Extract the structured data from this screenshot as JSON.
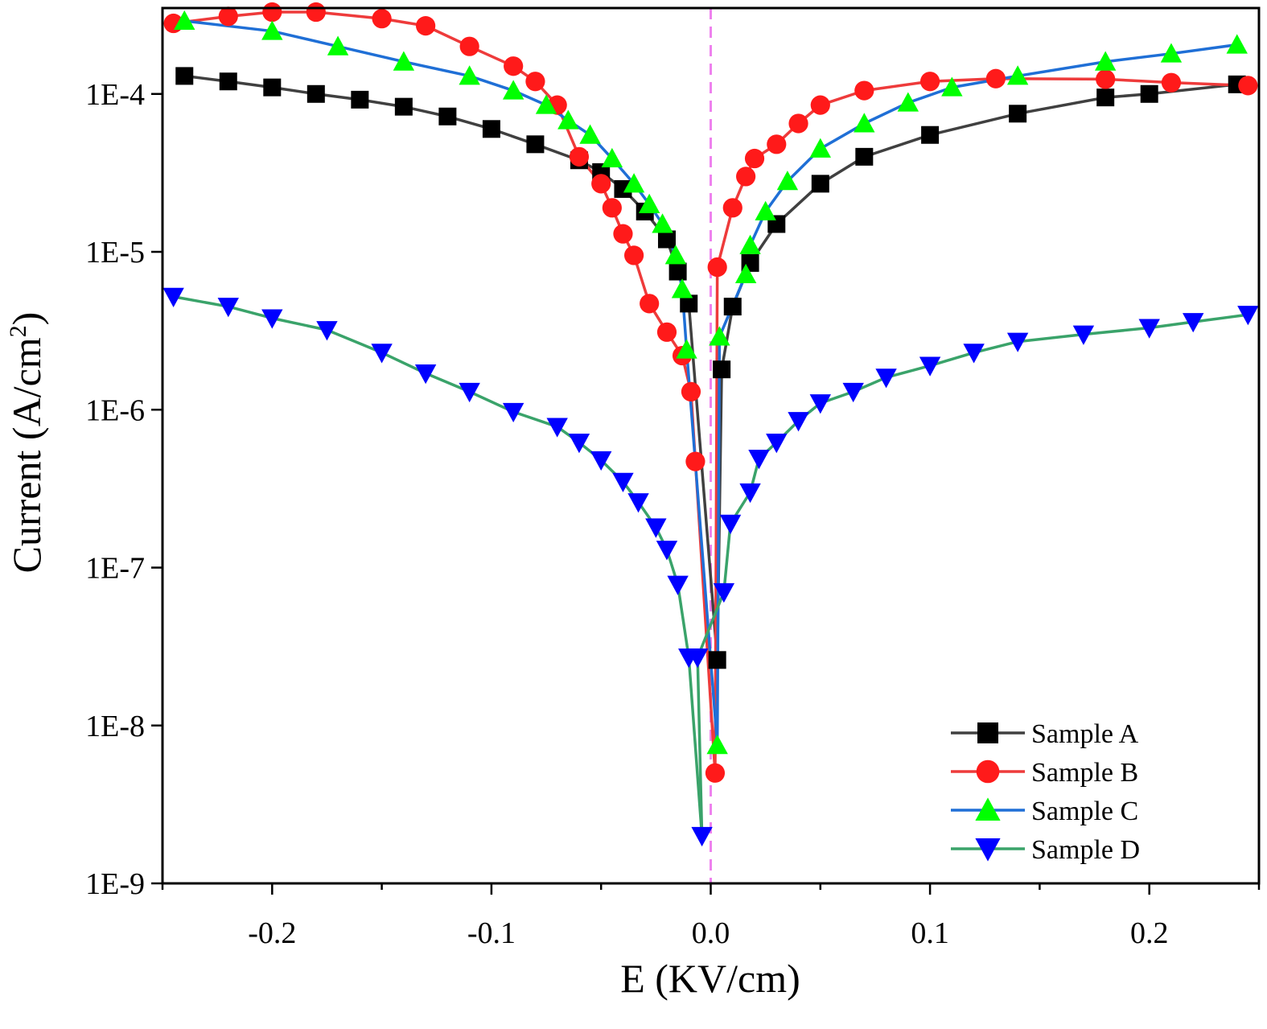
{
  "chart_data": {
    "type": "line",
    "xlabel": "E (KV/cm)",
    "ylabel_main": "Current (A/cm",
    "ylabel_sup": "2",
    "ylabel_close": ")",
    "xlim": [
      -0.25,
      0.25
    ],
    "ylim": [
      1e-09,
      0.00035
    ],
    "yscale": "log",
    "grid": false,
    "legend_position": "bottom-right",
    "reference_line": {
      "x": 0.0,
      "color": "#ee82ee",
      "style": "dashed"
    },
    "x_ticks": [
      -0.2,
      -0.1,
      0.0,
      0.1,
      0.2
    ],
    "x_tick_labels": [
      "-0.2",
      "-0.1",
      "0.0",
      "0.1",
      "0.2"
    ],
    "y_ticks": [
      1e-09,
      1e-08,
      1e-07,
      1e-06,
      1e-05,
      0.0001
    ],
    "y_tick_labels": [
      "1E-9",
      "1E-8",
      "1E-7",
      "1E-6",
      "1E-5",
      "1E-4"
    ],
    "series": [
      {
        "name": "Sample A",
        "marker": "square",
        "line_color": "#404040",
        "marker_color": "#000000",
        "x": [
          -0.24,
          -0.22,
          -0.2,
          -0.18,
          -0.16,
          -0.14,
          -0.12,
          -0.1,
          -0.08,
          -0.06,
          -0.05,
          -0.04,
          -0.03,
          -0.02,
          -0.015,
          -0.01,
          0.003,
          0.005,
          0.01,
          0.018,
          0.03,
          0.05,
          0.07,
          0.1,
          0.14,
          0.18,
          0.2,
          0.24
        ],
        "y": [
          0.00013,
          0.00012,
          0.00011,
          0.0001,
          9.2e-05,
          8.3e-05,
          7.2e-05,
          6e-05,
          4.8e-05,
          3.8e-05,
          3.2e-05,
          2.5e-05,
          1.8e-05,
          1.2e-05,
          7.5e-06,
          4.7e-06,
          2.6e-08,
          1.8e-06,
          4.5e-06,
          8.5e-06,
          1.5e-05,
          2.7e-05,
          4e-05,
          5.5e-05,
          7.5e-05,
          9.5e-05,
          0.0001,
          0.000115
        ]
      },
      {
        "name": "Sample B",
        "marker": "circle",
        "line_color": "#ee3b3b",
        "marker_color": "#ff1a1a",
        "x": [
          -0.245,
          -0.22,
          -0.2,
          -0.18,
          -0.15,
          -0.13,
          -0.11,
          -0.09,
          -0.08,
          -0.07,
          -0.06,
          -0.05,
          -0.045,
          -0.04,
          -0.035,
          -0.028,
          -0.02,
          -0.013,
          -0.009,
          -0.007,
          0.002,
          0.003,
          0.01,
          0.016,
          0.02,
          0.03,
          0.04,
          0.05,
          0.07,
          0.1,
          0.13,
          0.18,
          0.21,
          0.245
        ],
        "y": [
          0.00028,
          0.00031,
          0.00033,
          0.00033,
          0.0003,
          0.00027,
          0.0002,
          0.00015,
          0.00012,
          8.5e-05,
          4e-05,
          2.7e-05,
          1.9e-05,
          1.3e-05,
          9.5e-06,
          4.7e-06,
          3.1e-06,
          2.2e-06,
          1.3e-06,
          4.7e-07,
          5e-09,
          8e-06,
          1.9e-05,
          3e-05,
          3.9e-05,
          4.8e-05,
          6.5e-05,
          8.5e-05,
          0.000105,
          0.00012,
          0.000125,
          0.000124,
          0.000118,
          0.000113
        ]
      },
      {
        "name": "Sample C",
        "marker": "triangle-up",
        "line_color": "#1f6fd6",
        "marker_color": "#00ff00",
        "x": [
          -0.24,
          -0.2,
          -0.17,
          -0.14,
          -0.11,
          -0.09,
          -0.075,
          -0.065,
          -0.055,
          -0.045,
          -0.035,
          -0.028,
          -0.022,
          -0.016,
          -0.013,
          -0.011,
          0.003,
          0.004,
          0.016,
          0.018,
          0.025,
          0.035,
          0.05,
          0.07,
          0.09,
          0.11,
          0.14,
          0.18,
          0.21,
          0.24
        ],
        "y": [
          0.00029,
          0.00025,
          0.0002,
          0.00016,
          0.00013,
          0.000105,
          8.5e-05,
          6.8e-05,
          5.5e-05,
          3.9e-05,
          2.7e-05,
          2e-05,
          1.5e-05,
          9.5e-06,
          5.8e-06,
          2.4e-06,
          7.5e-09,
          2.9e-06,
          7.2e-06,
          1.1e-05,
          1.8e-05,
          2.8e-05,
          4.5e-05,
          6.5e-05,
          8.8e-05,
          0.00011,
          0.00013,
          0.00016,
          0.00018,
          0.000205
        ]
      },
      {
        "name": "Sample D",
        "marker": "triangle-down",
        "line_color": "#3aa36a",
        "marker_color": "#0000ff",
        "x": [
          -0.245,
          -0.22,
          -0.2,
          -0.175,
          -0.15,
          -0.13,
          -0.11,
          -0.09,
          -0.07,
          -0.06,
          -0.05,
          -0.04,
          -0.033,
          -0.025,
          -0.02,
          -0.015,
          -0.01,
          -0.004,
          -0.006,
          0.006,
          0.009,
          0.018,
          0.022,
          0.03,
          0.04,
          0.05,
          0.065,
          0.08,
          0.1,
          0.12,
          0.14,
          0.17,
          0.2,
          0.22,
          0.245
        ],
        "y": [
          5.2e-06,
          4.5e-06,
          3.8e-06,
          3.2e-06,
          2.3e-06,
          1.7e-06,
          1.3e-06,
          9.7e-07,
          7.8e-07,
          6.2e-07,
          4.8e-07,
          3.5e-07,
          2.6e-07,
          1.8e-07,
          1.3e-07,
          7.8e-08,
          2.7e-08,
          2e-09,
          2.7e-08,
          7e-08,
          1.9e-07,
          3e-07,
          4.9e-07,
          6.2e-07,
          8.5e-07,
          1.1e-06,
          1.3e-06,
          1.6e-06,
          1.9e-06,
          2.3e-06,
          2.7e-06,
          3e-06,
          3.3e-06,
          3.6e-06,
          4e-06
        ]
      }
    ]
  }
}
